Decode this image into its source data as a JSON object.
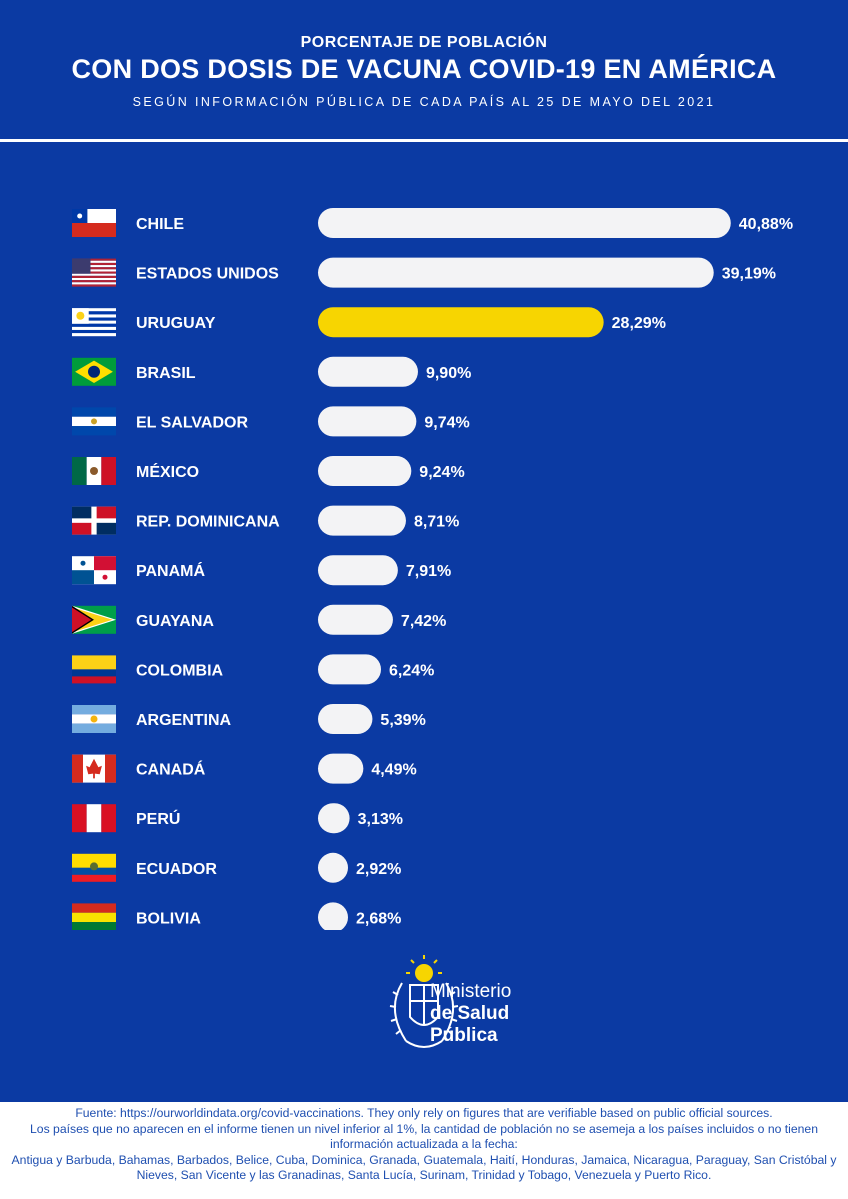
{
  "header": {
    "pre_title": "PORCENTAJE DE POBLACIÓN",
    "title": "CON DOS DOSIS DE VACUNA COVID-19 EN AMÉRICA",
    "subtitle": "SEGÚN INFORMACIÓN PÚBLICA DE CADA PAÍS AL 25 DE MAYO DEL 2021"
  },
  "colors": {
    "background": "#0b3aa3",
    "bar": "#f3f3f5",
    "highlight_bar": "#f7d501",
    "text": "#ffffff"
  },
  "chart_data": {
    "type": "bar",
    "orientation": "horizontal",
    "categories": [
      "CHILE",
      "ESTADOS UNIDOS",
      "URUGUAY",
      "BRASIL",
      "EL SALVADOR",
      "MÉXICO",
      "REP. DOMINICANA",
      "PANAMÁ",
      "GUAYANA",
      "COLOMBIA",
      "ARGENTINA",
      "CANADÁ",
      "PERÚ",
      "ECUADOR",
      "BOLIVIA"
    ],
    "values": [
      40.88,
      39.19,
      28.29,
      9.9,
      9.74,
      9.24,
      8.71,
      7.91,
      7.42,
      6.24,
      5.39,
      4.49,
      3.13,
      2.92,
      2.68
    ],
    "value_labels": [
      "40,88%",
      "39,19%",
      "28,29%",
      "9,90%",
      "9,74%",
      "9,24%",
      "8,71%",
      "7,91%",
      "7,42%",
      "6,24%",
      "5,39%",
      "4,49%",
      "3,13%",
      "2,92%",
      "2,68%"
    ],
    "highlight": "URUGUAY",
    "flags": [
      "chile-flag-icon",
      "usa-flag-icon",
      "uruguay-flag-icon",
      "brazil-flag-icon",
      "el-salvador-flag-icon",
      "mexico-flag-icon",
      "dominican-republic-flag-icon",
      "panama-flag-icon",
      "guyana-flag-icon",
      "colombia-flag-icon",
      "argentina-flag-icon",
      "canada-flag-icon",
      "peru-flag-icon",
      "ecuador-flag-icon",
      "bolivia-flag-icon"
    ],
    "xlim": [
      0,
      41
    ]
  },
  "logo": {
    "icon": "uruguay-coat-of-arms-icon",
    "line1": "Ministerio",
    "line2": "de Salud",
    "line3": "Pública"
  },
  "footer": {
    "line1": "Fuente: https://ourworldindata.org/covid-vaccinations. They only rely on figures that are verifiable based on public official sources.",
    "line2": "Los países que no aparecen en el informe tienen un nivel inferior al 1%, la cantidad de población no se asemeja a los países incluidos o no tienen información actualizada a la fecha:",
    "line3": "Antigua y Barbuda, Bahamas, Barbados, Belice, Cuba, Dominica, Granada, Guatemala, Haití, Honduras, Jamaica, Nicaragua, Paraguay, San Cristóbal y Nieves, San Vicente y las Granadinas, Santa Lucía, Surinam, Trinidad y Tobago, Venezuela y Puerto Rico."
  }
}
